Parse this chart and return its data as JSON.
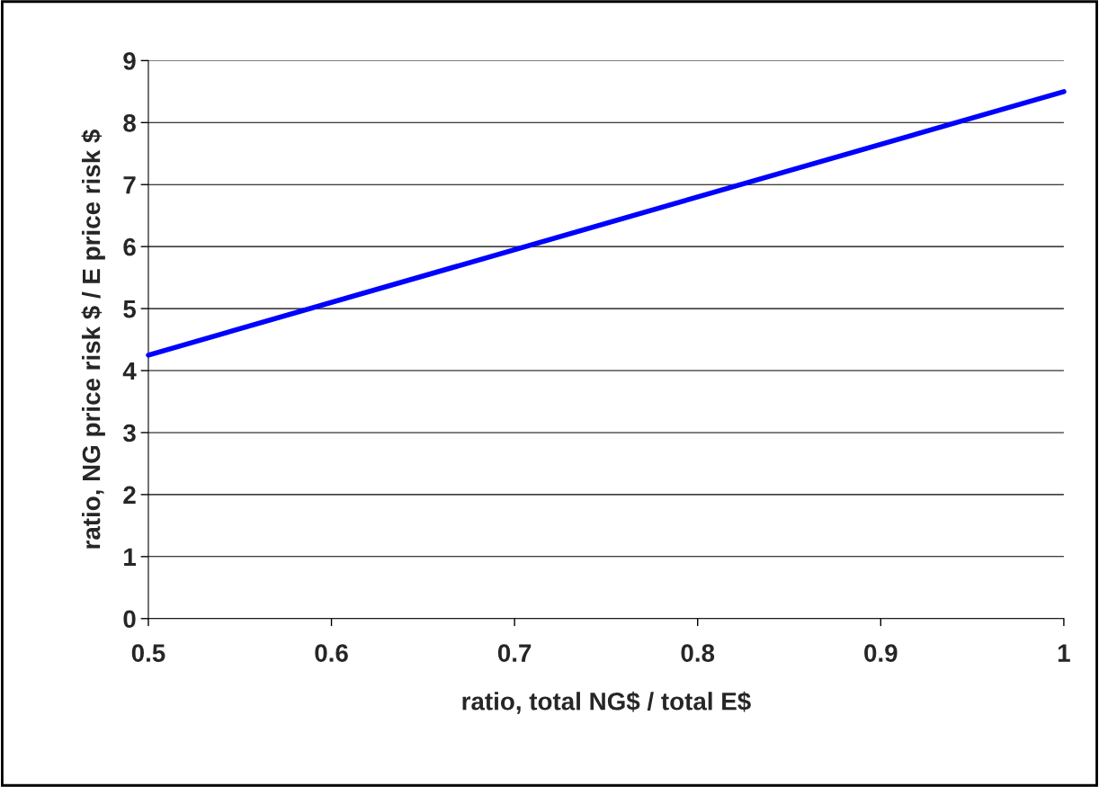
{
  "chart_data": {
    "type": "line",
    "xlabel": "ratio, total NG$ / total E$",
    "ylabel": "ratio, NG price risk $ / E price risk $",
    "x": [
      0.5,
      1
    ],
    "series": [
      {
        "color": "#0000ff",
        "values": [
          4.25,
          8.5
        ]
      }
    ],
    "xlim": [
      0.5,
      1
    ],
    "xticks": [
      0.5,
      0.6,
      0.7,
      0.8,
      0.9,
      1
    ],
    "ylim": [
      0,
      9
    ],
    "yticks": [
      0,
      1,
      2,
      3,
      4,
      5,
      6,
      7,
      8,
      9
    ],
    "grid": "y",
    "marker": "none",
    "line_style": "solid",
    "legend": false
  }
}
